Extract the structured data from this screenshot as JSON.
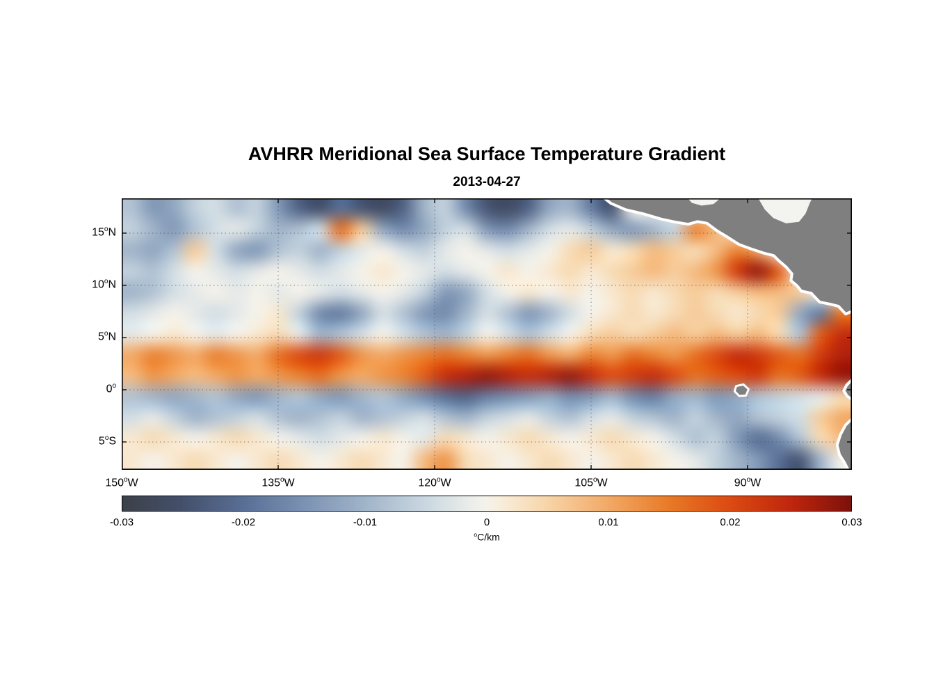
{
  "figure": {
    "title": "AVHRR Meridional Sea Surface Temperature Gradient",
    "subtitle": "2013-04-27",
    "background": "#ffffff"
  },
  "chart_data": {
    "type": "heatmap",
    "title": "AVHRR Meridional Sea Surface Temperature Gradient",
    "subtitle": "2013-04-27",
    "units": "degC/km",
    "x_axis": {
      "range": [
        -150,
        -80
      ],
      "ticks": [
        {
          "lon": -150,
          "num": "150",
          "sup": "o",
          "suf": "W"
        },
        {
          "lon": -135,
          "num": "135",
          "sup": "o",
          "suf": "W"
        },
        {
          "lon": -120,
          "num": "120",
          "sup": "o",
          "suf": "W"
        },
        {
          "lon": -105,
          "num": "105",
          "sup": "o",
          "suf": "W"
        },
        {
          "lon": -90,
          "num": "90",
          "sup": "o",
          "suf": "W"
        }
      ]
    },
    "y_axis": {
      "range": [
        -7.67,
        18.33
      ],
      "ticks": [
        {
          "lat": 15,
          "num": "15",
          "sup": "o",
          "suf": "N"
        },
        {
          "lat": 10,
          "num": "10",
          "sup": "o",
          "suf": "N"
        },
        {
          "lat": 5,
          "num": "5",
          "sup": "o",
          "suf": "N"
        },
        {
          "lat": 0,
          "num": "0",
          "sup": "o",
          "suf": ""
        },
        {
          "lat": -5,
          "num": "5",
          "sup": "o",
          "suf": "S"
        }
      ]
    },
    "grid": {
      "lons": [
        -135,
        -120,
        -105,
        -90
      ],
      "lats": [
        15,
        10,
        5,
        0,
        -5
      ],
      "style": "dotted"
    },
    "colorbar": {
      "min": -0.03,
      "max": 0.03,
      "orientation": "horizontal",
      "ticks": [
        {
          "value": -0.03,
          "label": "-0.03"
        },
        {
          "value": -0.02,
          "label": "-0.02"
        },
        {
          "value": -0.01,
          "label": "-0.01"
        },
        {
          "value": 0,
          "label": "0"
        },
        {
          "value": 0.01,
          "label": "0.01"
        },
        {
          "value": 0.02,
          "label": "0.02"
        },
        {
          "value": 0.03,
          "label": "0.03"
        }
      ],
      "unit_sup": "o",
      "unit_text": "C/km",
      "stops": [
        {
          "t": 0.0,
          "c": "#3c4048"
        },
        {
          "t": 0.08,
          "c": "#434f6a"
        },
        {
          "t": 0.17,
          "c": "#5a7097"
        },
        {
          "t": 0.25,
          "c": "#7b92b3"
        },
        {
          "t": 0.33,
          "c": "#9fb3c8"
        },
        {
          "t": 0.42,
          "c": "#ccd9e2"
        },
        {
          "t": 0.48,
          "c": "#eceeea"
        },
        {
          "t": 0.5,
          "c": "#f5f2ea"
        },
        {
          "t": 0.52,
          "c": "#f8edda"
        },
        {
          "t": 0.58,
          "c": "#f7d6ab"
        },
        {
          "t": 0.67,
          "c": "#f2a763"
        },
        {
          "t": 0.75,
          "c": "#e87a26"
        },
        {
          "t": 0.83,
          "c": "#dc4c12"
        },
        {
          "t": 0.92,
          "c": "#bd250d"
        },
        {
          "t": 1.0,
          "c": "#7c110b"
        }
      ]
    },
    "values_scale": 0.001,
    "lon_centers_start": -149,
    "lon_step": 2,
    "lat_centers_start": 17,
    "lat_step": -2,
    "values": [
      [
        -8,
        -14,
        -12,
        -6,
        -4,
        -8,
        -6,
        -14,
        -22,
        -25,
        -20,
        -24,
        -26,
        -22,
        -10,
        -6,
        -16,
        -24,
        -26,
        -22,
        -12,
        -10,
        -18,
        -24,
        0,
        0,
        0,
        0,
        0,
        0,
        0,
        0,
        0,
        0,
        0
      ],
      [
        -6,
        -10,
        -14,
        -8,
        -4,
        -2,
        -6,
        -10,
        -8,
        -4,
        16,
        6,
        -12,
        -16,
        -12,
        -6,
        -4,
        -14,
        -16,
        -10,
        -4,
        -2,
        -6,
        -12,
        -14,
        -10,
        -6,
        14,
        8,
        0,
        0,
        0,
        0,
        0,
        0
      ],
      [
        -10,
        -12,
        -8,
        6,
        -4,
        -12,
        -14,
        -8,
        -6,
        -10,
        -6,
        -2,
        0,
        -4,
        -6,
        -2,
        0,
        -2,
        -4,
        -2,
        0,
        4,
        6,
        2,
        4,
        8,
        6,
        4,
        8,
        14,
        10,
        0,
        0,
        0,
        0
      ],
      [
        -6,
        -8,
        -4,
        0,
        -2,
        -4,
        -2,
        0,
        -2,
        -4,
        -2,
        0,
        2,
        0,
        -2,
        -4,
        -2,
        0,
        2,
        0,
        2,
        4,
        2,
        4,
        6,
        8,
        6,
        8,
        12,
        22,
        28,
        18,
        0,
        0,
        0
      ],
      [
        -10,
        -8,
        -4,
        -2,
        0,
        -2,
        0,
        -2,
        0,
        -2,
        -4,
        -2,
        0,
        -2,
        -6,
        -14,
        -12,
        -4,
        0,
        2,
        0,
        2,
        0,
        2,
        4,
        2,
        4,
        6,
        4,
        6,
        8,
        8,
        6,
        0,
        0
      ],
      [
        -4,
        -2,
        0,
        -2,
        -4,
        -2,
        0,
        2,
        -6,
        -16,
        -18,
        -12,
        -4,
        -8,
        -14,
        -16,
        -10,
        -4,
        -8,
        -14,
        -10,
        -4,
        0,
        2,
        4,
        2,
        4,
        6,
        4,
        2,
        4,
        6,
        -12,
        -18,
        15
      ],
      [
        -2,
        0,
        2,
        0,
        -2,
        0,
        2,
        4,
        -2,
        -10,
        -8,
        -4,
        0,
        -4,
        -8,
        -10,
        -6,
        0,
        -4,
        -8,
        -4,
        0,
        4,
        6,
        4,
        6,
        8,
        6,
        8,
        6,
        8,
        4,
        -8,
        18,
        24
      ],
      [
        10,
        14,
        12,
        10,
        14,
        12,
        10,
        16,
        20,
        22,
        18,
        12,
        10,
        12,
        14,
        16,
        14,
        12,
        14,
        16,
        12,
        10,
        14,
        12,
        16,
        14,
        12,
        16,
        20,
        24,
        22,
        18,
        16,
        22,
        26
      ],
      [
        8,
        12,
        10,
        8,
        10,
        12,
        10,
        12,
        14,
        16,
        12,
        10,
        12,
        14,
        18,
        24,
        26,
        28,
        26,
        24,
        26,
        28,
        24,
        20,
        22,
        24,
        20,
        16,
        18,
        20,
        22,
        16,
        18,
        24,
        28
      ],
      [
        -8,
        -10,
        -12,
        -10,
        -8,
        -12,
        -14,
        -10,
        -8,
        -12,
        -14,
        -10,
        -8,
        -12,
        -16,
        -20,
        -22,
        -18,
        -16,
        -14,
        -12,
        -16,
        -14,
        -10,
        -16,
        -18,
        -12,
        -10,
        -14,
        -12,
        -8,
        -6,
        -4,
        -2,
        4
      ],
      [
        -4,
        -2,
        -6,
        -10,
        -8,
        -6,
        -4,
        -8,
        -10,
        -8,
        -6,
        -10,
        -8,
        -6,
        -4,
        -8,
        -10,
        -6,
        -4,
        -2,
        -6,
        -8,
        -4,
        -2,
        -6,
        -8,
        -10,
        -6,
        -10,
        -12,
        -8,
        -6,
        -4,
        6,
        10
      ],
      [
        2,
        4,
        2,
        0,
        2,
        4,
        2,
        0,
        -2,
        -4,
        -2,
        0,
        2,
        0,
        -2,
        4,
        2,
        0,
        2,
        4,
        2,
        0,
        2,
        4,
        2,
        0,
        -4,
        -8,
        -6,
        -14,
        -20,
        -16,
        -8,
        4,
        8
      ],
      [
        2,
        0,
        2,
        4,
        2,
        0,
        2,
        4,
        2,
        0,
        2,
        4,
        2,
        0,
        8,
        12,
        4,
        2,
        0,
        2,
        4,
        2,
        0,
        2,
        4,
        2,
        0,
        -2,
        -6,
        -10,
        -14,
        -20,
        -24,
        -10,
        0
      ]
    ],
    "map": {
      "land_color": "#7f7f7f",
      "coast_buffer_color": "#ffffff",
      "land_polygons": [
        [
          [
            -103.8,
            18.4
          ],
          [
            -103.1,
            17.85
          ],
          [
            -101.7,
            17.25
          ],
          [
            -100.0,
            16.85
          ],
          [
            -98.3,
            16.35
          ],
          [
            -96.9,
            16.05
          ],
          [
            -95.7,
            15.85
          ],
          [
            -94.8,
            16.1
          ],
          [
            -93.9,
            15.95
          ],
          [
            -92.9,
            15.2
          ],
          [
            -91.9,
            14.6
          ],
          [
            -90.8,
            13.9
          ],
          [
            -89.7,
            13.5
          ],
          [
            -88.5,
            13.1
          ],
          [
            -87.5,
            12.85
          ],
          [
            -87.0,
            12.35
          ],
          [
            -86.3,
            11.75
          ],
          [
            -85.75,
            11.1
          ],
          [
            -85.85,
            10.45
          ],
          [
            -85.25,
            9.95
          ],
          [
            -84.85,
            9.45
          ],
          [
            -83.9,
            9.25
          ],
          [
            -83.1,
            8.4
          ],
          [
            -82.1,
            8.2
          ],
          [
            -81.3,
            8.0
          ],
          [
            -80.6,
            7.25
          ],
          [
            -79.9,
            7.55
          ],
          [
            -79.9,
            18.4
          ]
        ],
        [
          [
            -79.9,
            1.05
          ],
          [
            -80.5,
            0.45
          ],
          [
            -80.78,
            -0.1
          ],
          [
            -80.45,
            -0.62
          ],
          [
            -79.9,
            -1.0
          ]
        ],
        [
          [
            -79.9,
            -2.7
          ],
          [
            -80.62,
            -3.4
          ],
          [
            -81.1,
            -4.3
          ],
          [
            -81.42,
            -5.3
          ],
          [
            -81.2,
            -6.2
          ],
          [
            -80.7,
            -7.0
          ],
          [
            -80.3,
            -7.8
          ],
          [
            -79.9,
            -7.8
          ]
        ]
      ],
      "island_polygons": [
        [
          [
            -91.1,
            0.35
          ],
          [
            -90.4,
            0.5
          ],
          [
            -89.9,
            0.05
          ],
          [
            -90.15,
            -0.55
          ],
          [
            -90.8,
            -0.6
          ],
          [
            -91.25,
            -0.15
          ]
        ]
      ],
      "water_notches": [
        [
          [
            -95.8,
            18.5
          ],
          [
            -95.3,
            17.95
          ],
          [
            -94.4,
            17.7
          ],
          [
            -93.3,
            17.85
          ],
          [
            -92.5,
            18.5
          ]
        ],
        [
          [
            -89.0,
            18.5
          ],
          [
            -88.3,
            17.3
          ],
          [
            -87.5,
            16.5
          ],
          [
            -86.3,
            16.0
          ],
          [
            -85.1,
            16.15
          ],
          [
            -84.5,
            16.9
          ],
          [
            -84.1,
            17.9
          ],
          [
            -83.8,
            18.5
          ]
        ]
      ]
    }
  }
}
